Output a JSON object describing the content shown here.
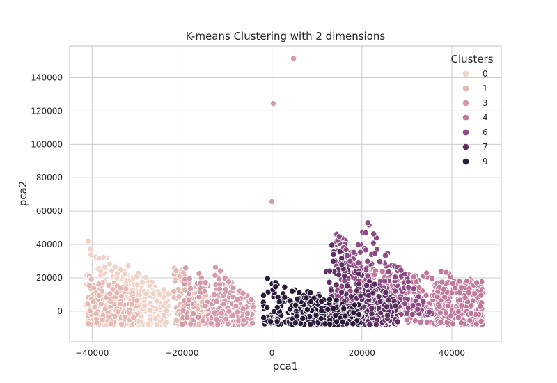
{
  "chart_data": {
    "type": "scatter",
    "title": "K-means Clustering with 2 dimensions",
    "xlabel": "pca1",
    "ylabel": "pca2",
    "xlim": [
      -45000,
      51000
    ],
    "ylim": [
      -18000,
      159000
    ],
    "xticks": [
      -40000,
      -20000,
      0,
      20000,
      40000
    ],
    "xtick_labels": [
      "−40000",
      "−20000",
      "0",
      "20000",
      "40000"
    ],
    "yticks": [
      0,
      20000,
      40000,
      60000,
      80000,
      100000,
      120000,
      140000
    ],
    "ytick_labels": [
      "0",
      "20000",
      "40000",
      "60000",
      "80000",
      "100000",
      "120000",
      "140000"
    ],
    "grid": true,
    "legend": {
      "title": "Clusters",
      "placement": "top-right"
    },
    "series": [
      {
        "name": "0",
        "color": "#efd3c8",
        "regions": [
          {
            "x": [
              -41500,
              -28000
            ],
            "y": [
              -8000,
              44000
            ],
            "yslope": -1.2
          },
          {
            "x": [
              -33000,
              -23000
            ],
            "y": [
              -8000,
              30000
            ],
            "yslope": -1.0
          }
        ]
      },
      {
        "name": "1",
        "color": "#e5b9b2",
        "regions": [
          {
            "x": [
              -41000,
              -30000
            ],
            "y": [
              -8000,
              25000
            ],
            "yslope": -0.8
          },
          {
            "x": [
              -22000,
              -13000
            ],
            "y": [
              -8000,
              30000
            ],
            "yslope": -1.1
          }
        ]
      },
      {
        "name": "3",
        "color": "#d49ba9",
        "regions": [
          {
            "x": [
              -20000,
              -6000
            ],
            "y": [
              -8000,
              30000
            ],
            "yslope": -1.4
          },
          {
            "x": [
              -13000,
              -4000
            ],
            "y": [
              -8000,
              28000
            ],
            "yslope": -1.2
          }
        ]
      },
      {
        "name": "4",
        "color": "#c17a9b",
        "regions": [
          {
            "x": [
              30000,
              47000
            ],
            "y": [
              -8000,
              28000
            ],
            "yslope": -0.5
          },
          {
            "x": [
              36000,
              47000
            ],
            "y": [
              -8000,
              18000
            ],
            "yslope": 0
          },
          {
            "x": [
              20000,
              30000
            ],
            "y": [
              -2000,
              28000
            ],
            "yslope": -0.5
          }
        ]
      },
      {
        "name": "6",
        "color": "#8d4c84",
        "regions": [
          {
            "x": [
              18000,
              36000
            ],
            "y": [
              -2000,
              66000
            ],
            "yslope": -2.0
          },
          {
            "x": [
              14000,
              22000
            ],
            "y": [
              0,
              52000
            ],
            "yslope": -1.2
          }
        ]
      },
      {
        "name": "7",
        "color": "#5d2f63",
        "regions": [
          {
            "x": [
              12000,
              26000
            ],
            "y": [
              -8000,
              45000
            ],
            "yslope": -1.5
          },
          {
            "x": [
              21000,
              28000
            ],
            "y": [
              -8000,
              20000
            ],
            "yslope": -1.0
          }
        ]
      },
      {
        "name": "9",
        "color": "#2a1a3a",
        "regions": [
          {
            "x": [
              -2000,
              12000
            ],
            "y": [
              -8000,
              22000
            ],
            "yslope": -1.2
          },
          {
            "x": [
              4000,
              20000
            ],
            "y": [
              -8000,
              15000
            ],
            "yslope": -1.0
          }
        ]
      }
    ],
    "outliers": [
      {
        "x": 4800,
        "y": 151500,
        "series": "3"
      },
      {
        "x": 300,
        "y": 124500,
        "series": "3"
      },
      {
        "x": 0,
        "y": 65700,
        "series": "3"
      }
    ]
  }
}
